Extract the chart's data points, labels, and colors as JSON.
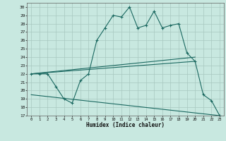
{
  "title": "",
  "xlabel": "Humidex (Indice chaleur)",
  "bg_color": "#c8e8e0",
  "grid_color": "#a8c8c0",
  "line_color": "#1a6860",
  "xlim": [
    -0.5,
    23.5
  ],
  "ylim": [
    17,
    30.5
  ],
  "xticks": [
    0,
    1,
    2,
    3,
    4,
    5,
    6,
    7,
    8,
    9,
    10,
    11,
    12,
    13,
    14,
    15,
    16,
    17,
    18,
    19,
    20,
    21,
    22,
    23
  ],
  "yticks": [
    17,
    18,
    19,
    20,
    21,
    22,
    23,
    24,
    25,
    26,
    27,
    28,
    29,
    30
  ],
  "series1_x": [
    0,
    1,
    2,
    3,
    4,
    5,
    6,
    7,
    8,
    9,
    10,
    11,
    12,
    13,
    14,
    15,
    16,
    17,
    18,
    19,
    20,
    21,
    22,
    23
  ],
  "series1_y": [
    22,
    22,
    22,
    20.5,
    19,
    18.5,
    21.2,
    22,
    26,
    27.5,
    29,
    28.8,
    30,
    27.5,
    27.8,
    29.5,
    27.5,
    27.8,
    28,
    24.5,
    23.5,
    19.5,
    18.8,
    17
  ],
  "series2_x": [
    0,
    20
  ],
  "series2_y": [
    22,
    24
  ],
  "series3_x": [
    0,
    20
  ],
  "series3_y": [
    22,
    23.5
  ],
  "series4_x": [
    0,
    23
  ],
  "series4_y": [
    19.5,
    17
  ]
}
